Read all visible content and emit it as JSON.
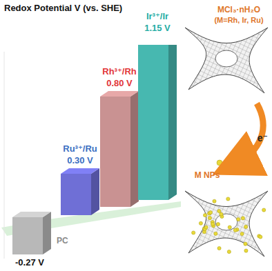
{
  "chart_data": {
    "type": "bar",
    "title": "Redox Potential V (vs. SHE)",
    "categories": [
      "PC",
      "Ru³⁺/Ru",
      "Rh³⁺/Rh",
      "Ir³⁺/Ir"
    ],
    "values": [
      -0.27,
      0.3,
      0.8,
      1.15
    ],
    "value_labels": [
      "-0.27 V",
      "0.30 V",
      "0.80 V",
      "1.15 V"
    ],
    "colors": [
      "#b8b8b8",
      "#6f6fd6",
      "#c99292",
      "#47b8b0"
    ],
    "ylim": [
      -0.3,
      1.2
    ],
    "data_labels": true,
    "tick_labels": false,
    "annotations": [
      "MCl₃·nH₂O",
      "(M=Rh, Ir, Ru)",
      "e⁻",
      "M NPs"
    ]
  }
}
